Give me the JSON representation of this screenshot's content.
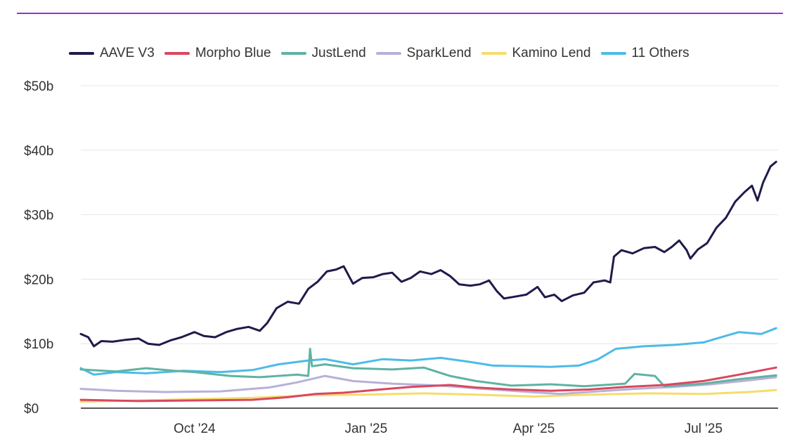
{
  "chart_data": {
    "type": "line",
    "title": "",
    "xlabel": "",
    "ylabel": "",
    "ylim": [
      0,
      50
    ],
    "y_ticks": [
      {
        "value": 0,
        "label": "$0"
      },
      {
        "value": 10,
        "label": "$10b"
      },
      {
        "value": 20,
        "label": "$20b"
      },
      {
        "value": 30,
        "label": "$30b"
      },
      {
        "value": 40,
        "label": "$40b"
      },
      {
        "value": 50,
        "label": "$50b"
      }
    ],
    "x_range": [
      "2024-08-01",
      "2025-08-10"
    ],
    "x_ticks": [
      {
        "date": "2024-10-01",
        "label": "Oct '24"
      },
      {
        "date": "2025-01-01",
        "label": "Jan '25"
      },
      {
        "date": "2025-04-01",
        "label": "Apr '25"
      },
      {
        "date": "2025-07-01",
        "label": "Jul '25"
      }
    ],
    "grid": "horizontal",
    "legend_position": "top-left",
    "series": [
      {
        "name": "AAVE V3",
        "color": "#1e1b4b",
        "points": [
          [
            "2024-08-01",
            11.5
          ],
          [
            "2024-08-05",
            11.0
          ],
          [
            "2024-08-08",
            9.6
          ],
          [
            "2024-08-12",
            10.4
          ],
          [
            "2024-08-18",
            10.3
          ],
          [
            "2024-08-25",
            10.6
          ],
          [
            "2024-09-01",
            10.8
          ],
          [
            "2024-09-06",
            10.0
          ],
          [
            "2024-09-12",
            9.8
          ],
          [
            "2024-09-18",
            10.5
          ],
          [
            "2024-09-24",
            11.0
          ],
          [
            "2024-10-01",
            11.8
          ],
          [
            "2024-10-06",
            11.2
          ],
          [
            "2024-10-12",
            11.0
          ],
          [
            "2024-10-18",
            11.8
          ],
          [
            "2024-10-24",
            12.3
          ],
          [
            "2024-10-30",
            12.6
          ],
          [
            "2024-11-05",
            12.0
          ],
          [
            "2024-11-09",
            13.2
          ],
          [
            "2024-11-14",
            15.5
          ],
          [
            "2024-11-20",
            16.5
          ],
          [
            "2024-11-26",
            16.2
          ],
          [
            "2024-12-01",
            18.5
          ],
          [
            "2024-12-06",
            19.6
          ],
          [
            "2024-12-11",
            21.2
          ],
          [
            "2024-12-16",
            21.5
          ],
          [
            "2024-12-20",
            22.0
          ],
          [
            "2024-12-25",
            19.3
          ],
          [
            "2024-12-30",
            20.2
          ],
          [
            "2025-01-05",
            20.3
          ],
          [
            "2025-01-10",
            20.8
          ],
          [
            "2025-01-15",
            21.0
          ],
          [
            "2025-01-20",
            19.6
          ],
          [
            "2025-01-25",
            20.2
          ],
          [
            "2025-01-30",
            21.2
          ],
          [
            "2025-02-05",
            20.8
          ],
          [
            "2025-02-10",
            21.4
          ],
          [
            "2025-02-15",
            20.5
          ],
          [
            "2025-02-20",
            19.2
          ],
          [
            "2025-02-26",
            19.0
          ],
          [
            "2025-03-03",
            19.2
          ],
          [
            "2025-03-08",
            19.8
          ],
          [
            "2025-03-12",
            18.2
          ],
          [
            "2025-03-16",
            17.0
          ],
          [
            "2025-03-22",
            17.3
          ],
          [
            "2025-03-28",
            17.6
          ],
          [
            "2025-04-03",
            18.8
          ],
          [
            "2025-04-07",
            17.2
          ],
          [
            "2025-04-12",
            17.6
          ],
          [
            "2025-04-16",
            16.6
          ],
          [
            "2025-04-22",
            17.5
          ],
          [
            "2025-04-28",
            17.9
          ],
          [
            "2025-05-03",
            19.5
          ],
          [
            "2025-05-09",
            19.8
          ],
          [
            "2025-05-12",
            19.5
          ],
          [
            "2025-05-14",
            23.5
          ],
          [
            "2025-05-18",
            24.5
          ],
          [
            "2025-05-24",
            24.0
          ],
          [
            "2025-05-30",
            24.8
          ],
          [
            "2025-06-05",
            25.0
          ],
          [
            "2025-06-10",
            24.2
          ],
          [
            "2025-06-14",
            25.0
          ],
          [
            "2025-06-18",
            26.0
          ],
          [
            "2025-06-22",
            24.5
          ],
          [
            "2025-06-24",
            23.2
          ],
          [
            "2025-06-28",
            24.6
          ],
          [
            "2025-07-03",
            25.6
          ],
          [
            "2025-07-08",
            28.0
          ],
          [
            "2025-07-13",
            29.5
          ],
          [
            "2025-07-18",
            32.0
          ],
          [
            "2025-07-23",
            33.5
          ],
          [
            "2025-07-27",
            34.5
          ],
          [
            "2025-07-30",
            32.2
          ],
          [
            "2025-08-02",
            35.0
          ],
          [
            "2025-08-06",
            37.5
          ],
          [
            "2025-08-09",
            38.2
          ]
        ]
      },
      {
        "name": "Morpho Blue",
        "color": "#d9485f",
        "points": [
          [
            "2024-08-01",
            1.3
          ],
          [
            "2024-09-01",
            1.1
          ],
          [
            "2024-10-01",
            1.2
          ],
          [
            "2024-11-01",
            1.3
          ],
          [
            "2024-11-20",
            1.7
          ],
          [
            "2024-12-05",
            2.2
          ],
          [
            "2024-12-20",
            2.4
          ],
          [
            "2025-01-05",
            2.8
          ],
          [
            "2025-01-25",
            3.3
          ],
          [
            "2025-02-15",
            3.6
          ],
          [
            "2025-03-01",
            3.2
          ],
          [
            "2025-03-20",
            2.9
          ],
          [
            "2025-04-10",
            2.7
          ],
          [
            "2025-05-01",
            2.9
          ],
          [
            "2025-05-20",
            3.3
          ],
          [
            "2025-06-10",
            3.6
          ],
          [
            "2025-07-01",
            4.2
          ],
          [
            "2025-07-20",
            5.2
          ],
          [
            "2025-08-09",
            6.3
          ]
        ]
      },
      {
        "name": "JustLend",
        "color": "#5fb3a3",
        "points": [
          [
            "2024-08-01",
            6.0
          ],
          [
            "2024-08-20",
            5.7
          ],
          [
            "2024-09-05",
            6.2
          ],
          [
            "2024-09-20",
            5.8
          ],
          [
            "2024-10-01",
            5.6
          ],
          [
            "2024-10-20",
            5.0
          ],
          [
            "2024-11-05",
            4.8
          ],
          [
            "2024-11-25",
            5.2
          ],
          [
            "2024-12-01",
            5.0
          ],
          [
            "2024-12-02",
            9.2
          ],
          [
            "2024-12-03",
            6.5
          ],
          [
            "2024-12-10",
            6.8
          ],
          [
            "2024-12-25",
            6.2
          ],
          [
            "2025-01-15",
            6.0
          ],
          [
            "2025-02-01",
            6.3
          ],
          [
            "2025-02-15",
            5.0
          ],
          [
            "2025-03-01",
            4.2
          ],
          [
            "2025-03-20",
            3.5
          ],
          [
            "2025-04-10",
            3.7
          ],
          [
            "2025-04-28",
            3.4
          ],
          [
            "2025-05-20",
            3.8
          ],
          [
            "2025-05-25",
            5.3
          ],
          [
            "2025-06-05",
            5.0
          ],
          [
            "2025-06-10",
            3.4
          ],
          [
            "2025-07-01",
            3.8
          ],
          [
            "2025-07-20",
            4.5
          ],
          [
            "2025-08-09",
            5.1
          ]
        ]
      },
      {
        "name": "SparkLend",
        "color": "#b8b0d8",
        "points": [
          [
            "2024-08-01",
            3.0
          ],
          [
            "2024-08-20",
            2.7
          ],
          [
            "2024-09-15",
            2.5
          ],
          [
            "2024-10-15",
            2.6
          ],
          [
            "2024-11-10",
            3.2
          ],
          [
            "2024-11-25",
            4.0
          ],
          [
            "2024-12-10",
            5.0
          ],
          [
            "2024-12-25",
            4.2
          ],
          [
            "2025-01-15",
            3.8
          ],
          [
            "2025-02-10",
            3.5
          ],
          [
            "2025-03-05",
            3.0
          ],
          [
            "2025-03-25",
            2.6
          ],
          [
            "2025-04-15",
            2.2
          ],
          [
            "2025-05-05",
            2.6
          ],
          [
            "2025-05-25",
            3.0
          ],
          [
            "2025-06-15",
            3.3
          ],
          [
            "2025-07-05",
            3.7
          ],
          [
            "2025-07-25",
            4.3
          ],
          [
            "2025-08-09",
            4.8
          ]
        ]
      },
      {
        "name": "Kamino Lend",
        "color": "#f5dc6c",
        "points": [
          [
            "2024-08-01",
            1.0
          ],
          [
            "2024-09-01",
            1.2
          ],
          [
            "2024-10-01",
            1.4
          ],
          [
            "2024-11-01",
            1.6
          ],
          [
            "2024-12-01",
            2.0
          ],
          [
            "2025-01-01",
            2.1
          ],
          [
            "2025-02-01",
            2.3
          ],
          [
            "2025-03-01",
            2.1
          ],
          [
            "2025-04-01",
            1.8
          ],
          [
            "2025-05-01",
            2.1
          ],
          [
            "2025-06-01",
            2.3
          ],
          [
            "2025-07-01",
            2.2
          ],
          [
            "2025-07-25",
            2.5
          ],
          [
            "2025-08-09",
            2.8
          ]
        ]
      },
      {
        "name": "11 Others",
        "color": "#4cbbe8",
        "points": [
          [
            "2024-08-01",
            6.2
          ],
          [
            "2024-08-08",
            5.2
          ],
          [
            "2024-08-20",
            5.6
          ],
          [
            "2024-09-05",
            5.4
          ],
          [
            "2024-09-25",
            5.8
          ],
          [
            "2024-10-15",
            5.6
          ],
          [
            "2024-11-01",
            5.9
          ],
          [
            "2024-11-15",
            6.8
          ],
          [
            "2024-12-01",
            7.4
          ],
          [
            "2024-12-10",
            7.6
          ],
          [
            "2024-12-25",
            6.8
          ],
          [
            "2025-01-10",
            7.6
          ],
          [
            "2025-01-25",
            7.4
          ],
          [
            "2025-02-10",
            7.8
          ],
          [
            "2025-02-25",
            7.2
          ],
          [
            "2025-03-10",
            6.6
          ],
          [
            "2025-03-25",
            6.5
          ],
          [
            "2025-04-10",
            6.4
          ],
          [
            "2025-04-25",
            6.6
          ],
          [
            "2025-05-05",
            7.5
          ],
          [
            "2025-05-15",
            9.2
          ],
          [
            "2025-05-30",
            9.6
          ],
          [
            "2025-06-15",
            9.8
          ],
          [
            "2025-07-01",
            10.2
          ],
          [
            "2025-07-20",
            11.8
          ],
          [
            "2025-08-01",
            11.5
          ],
          [
            "2025-08-09",
            12.4
          ]
        ]
      }
    ]
  }
}
